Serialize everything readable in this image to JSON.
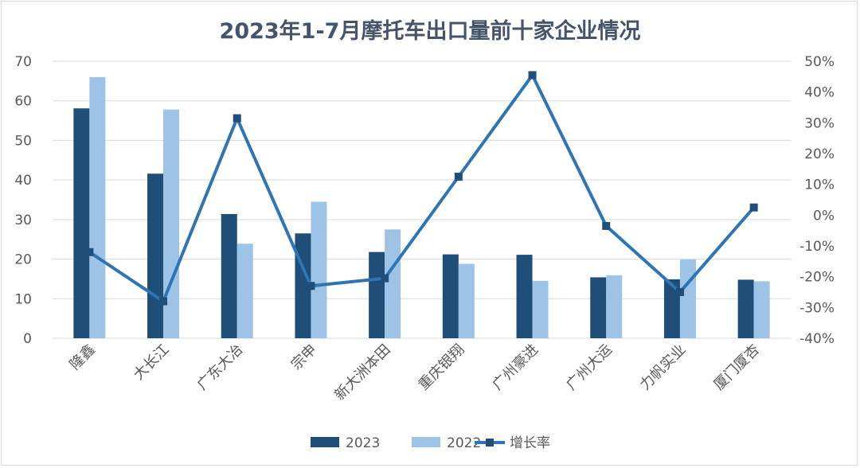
{
  "chart_data": {
    "type": "bar",
    "title": "2023年1-7月摩托车出口量前十家企业情况",
    "categories": [
      "隆鑫",
      "大长江",
      "广东大冶",
      "宗申",
      "新大洲本田",
      "重庆银翔",
      "广州豪进",
      "广州大运",
      "力帆实业",
      "厦门厦杏"
    ],
    "series": [
      {
        "name": "2023",
        "kind": "bar",
        "axis": "left",
        "color": "#1f4e79",
        "values": [
          58.1,
          41.6,
          31.4,
          26.5,
          21.8,
          21.2,
          21.1,
          15.4,
          14.9,
          14.8
        ]
      },
      {
        "name": "2022",
        "kind": "bar",
        "axis": "left",
        "color": "#9dc3e6",
        "values": [
          66.0,
          57.8,
          23.9,
          34.5,
          27.5,
          18.8,
          14.5,
          15.9,
          19.9,
          14.4
        ]
      },
      {
        "name": "增长率",
        "kind": "line",
        "axis": "right",
        "color": "#2e75b6",
        "values": [
          -12.0,
          -28.0,
          31.5,
          -23.0,
          -20.5,
          12.5,
          45.5,
          -3.5,
          -25.0,
          2.5
        ]
      }
    ],
    "y_left": {
      "min": 0,
      "max": 70,
      "ticks": [
        "0",
        "10",
        "20",
        "30",
        "40",
        "50",
        "60",
        "70"
      ]
    },
    "y_right": {
      "min": -40,
      "max": 50,
      "ticks": [
        "-40%",
        "-30%",
        "-20%",
        "-10%",
        "0%",
        "10%",
        "20%",
        "30%",
        "40%",
        "50%"
      ]
    },
    "grid": true,
    "legend_position": "bottom"
  }
}
